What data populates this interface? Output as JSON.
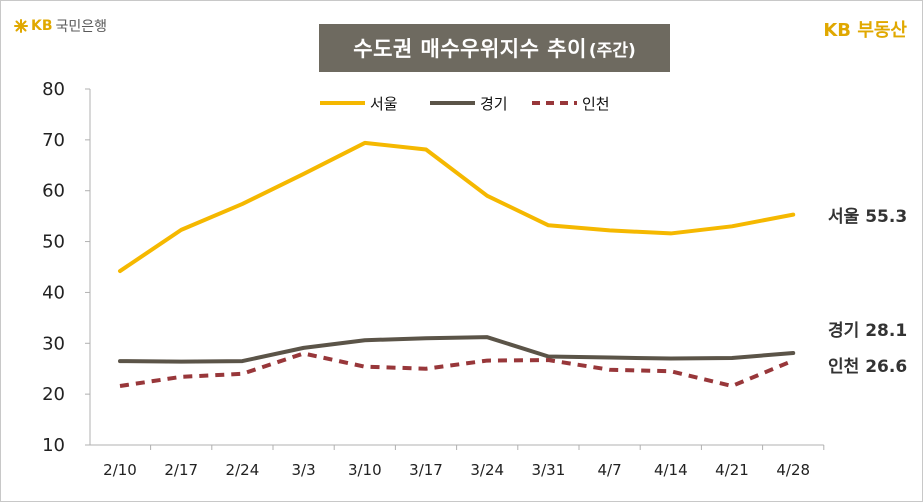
{
  "branding": {
    "left_logo_kb": "KB",
    "left_logo_text": "국민은행",
    "right_logo_kb": "KB",
    "right_logo_text": "부동산",
    "accent_color": "#e0a800"
  },
  "chart_data": {
    "type": "line",
    "title": "수도권 매수우위지수 추이",
    "subtitle": "(주간)",
    "xlabel": "",
    "ylabel": "",
    "categories": [
      "2/10",
      "2/17",
      "2/24",
      "3/3",
      "3/10",
      "3/17",
      "3/24",
      "3/31",
      "4/7",
      "4/14",
      "4/21",
      "4/28"
    ],
    "ylim": [
      10,
      80
    ],
    "yticks": [
      10,
      20,
      30,
      40,
      50,
      60,
      70,
      80
    ],
    "grid": false,
    "legend_position": "top-center",
    "series": [
      {
        "name": "서울",
        "color": "#f5b800",
        "style": "solid",
        "values": [
          44.2,
          52.3,
          57.4,
          63.3,
          69.4,
          68.1,
          59.0,
          53.2,
          52.2,
          51.6,
          53.0,
          55.3
        ],
        "end_label": "서울 55.3"
      },
      {
        "name": "경기",
        "color": "#5b5448",
        "style": "solid",
        "values": [
          26.5,
          26.4,
          26.5,
          29.1,
          30.6,
          31.0,
          31.2,
          27.4,
          27.2,
          27.0,
          27.1,
          28.1
        ],
        "end_label": "경기 28.1"
      },
      {
        "name": "인천",
        "color": "#98373a",
        "style": "dashed",
        "values": [
          21.6,
          23.4,
          24.0,
          28.0,
          25.4,
          25.0,
          26.6,
          26.7,
          24.8,
          24.5,
          21.6,
          26.6
        ],
        "end_label": "인천 26.6"
      }
    ]
  }
}
